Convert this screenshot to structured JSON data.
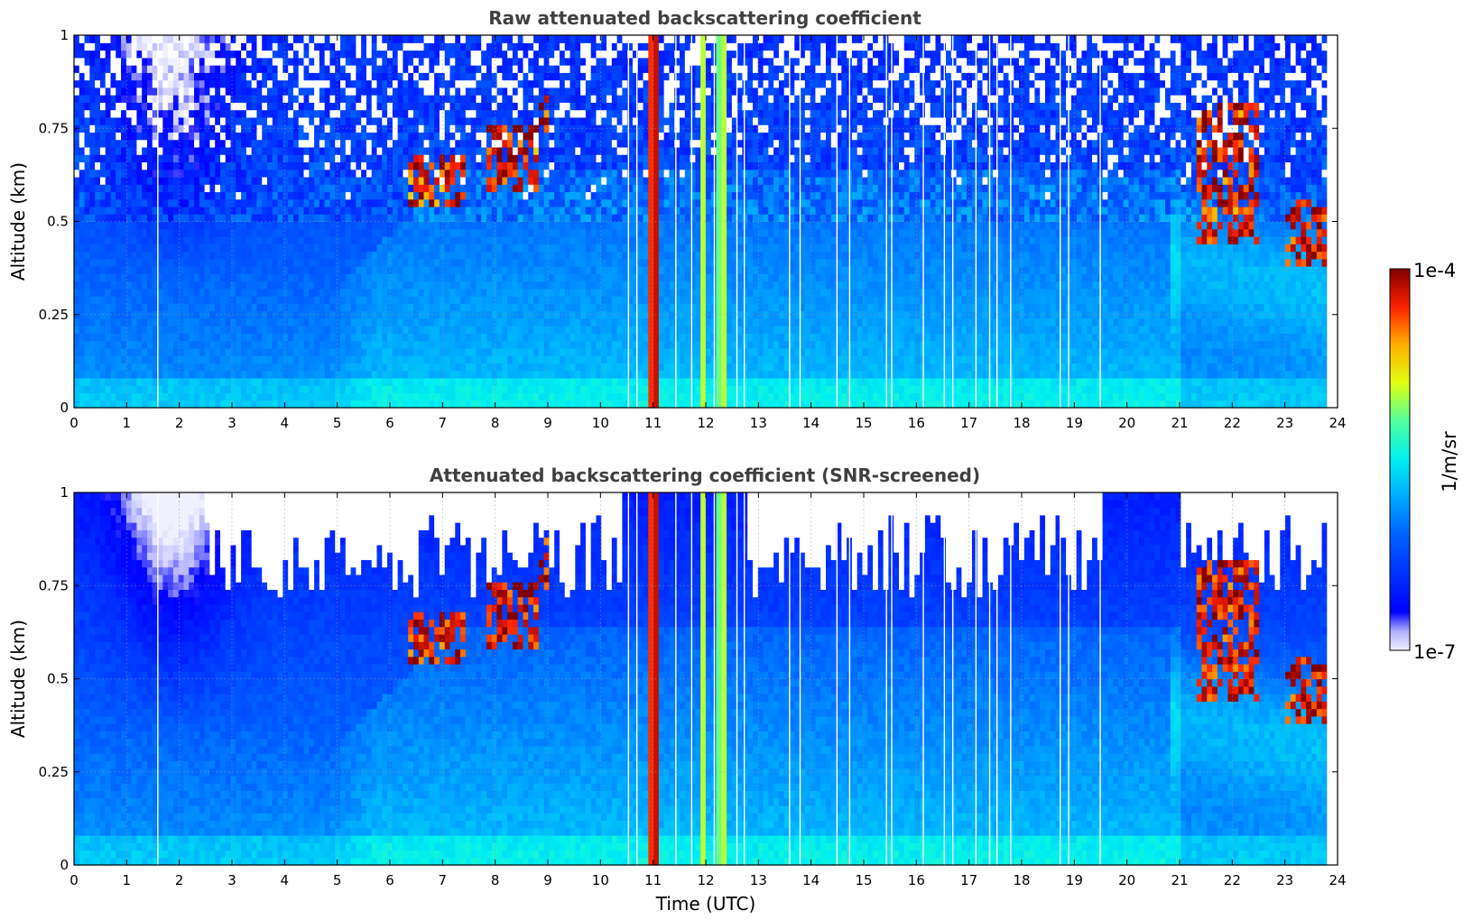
{
  "chart_data": [
    {
      "type": "heatmap",
      "title": "Raw attenuated backscattering coefficient",
      "xlabel": "",
      "ylabel": "Altitude (km)",
      "xlim": [
        0,
        24
      ],
      "ylim": [
        0,
        1
      ],
      "xticks": [
        "0",
        "1",
        "2",
        "3",
        "4",
        "5",
        "6",
        "7",
        "8",
        "9",
        "10",
        "11",
        "12",
        "13",
        "14",
        "15",
        "16",
        "17",
        "18",
        "19",
        "20",
        "21",
        "22",
        "23",
        "24"
      ],
      "yticks": [
        "0",
        "0.25",
        "0.5",
        "0.75",
        "1"
      ],
      "grid": true,
      "screened": false
    },
    {
      "type": "heatmap",
      "title": "Attenuated backscattering coefficient (SNR-screened)",
      "xlabel": "Time (UTC)",
      "ylabel": "Altitude (km)",
      "xlim": [
        0,
        24
      ],
      "ylim": [
        0,
        1
      ],
      "xticks": [
        "0",
        "1",
        "2",
        "3",
        "4",
        "5",
        "6",
        "7",
        "8",
        "9",
        "10",
        "11",
        "12",
        "13",
        "14",
        "15",
        "16",
        "17",
        "18",
        "19",
        "20",
        "21",
        "22",
        "23",
        "24"
      ],
      "yticks": [
        "0",
        "0.25",
        "0.5",
        "0.75",
        "1"
      ],
      "grid": true,
      "screened": true
    }
  ],
  "colorbar": {
    "label": "1/m/sr",
    "max_label": "1e-4",
    "min_label": "1e-7",
    "scale": "log",
    "colormap": "jet"
  },
  "features": {
    "rain_columns": [
      [
        10.92,
        11.12
      ],
      [
        11.88,
        11.98
      ],
      [
        12.22,
        12.4
      ]
    ],
    "cloud_patches": [
      {
        "t0": 6.3,
        "t1": 7.4,
        "z0": 0.55,
        "z1": 0.68
      },
      {
        "t0": 7.8,
        "t1": 8.8,
        "z0": 0.58,
        "z1": 0.75
      },
      {
        "t0": 8.85,
        "t1": 9.05,
        "z0": 0.75,
        "z1": 0.88
      },
      {
        "t0": 21.3,
        "t1": 22.5,
        "z0": 0.45,
        "z1": 0.82
      },
      {
        "t0": 23.0,
        "t1": 23.8,
        "z0": 0.38,
        "z1": 0.55
      }
    ],
    "gap_times": [
      1.58,
      10.52,
      10.68,
      11.42,
      11.72,
      12.15,
      12.58,
      12.72,
      13.58,
      13.78,
      14.48,
      14.72,
      15.42,
      15.52,
      16.12,
      16.52,
      16.68,
      17.12,
      17.38,
      17.52,
      17.78,
      18.72,
      18.88,
      19.48
    ],
    "data_end_time": 23.8
  }
}
